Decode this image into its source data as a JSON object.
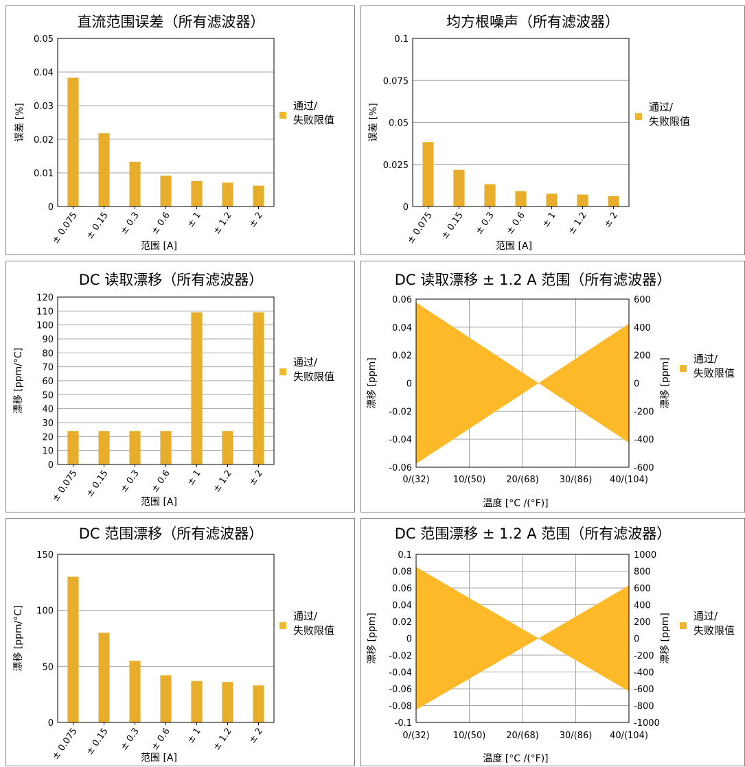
{
  "colors": {
    "bar": "#E8AE2B",
    "band": "#FDB927",
    "legend": "#F0B62D",
    "grid": "#a6a6a6",
    "border": "#7f7f7f"
  },
  "chart_data": [
    {
      "type": "bar",
      "title": "直流范围误差（所有滤波器）",
      "xlabel": "范围 [A]",
      "ylabel": "误差 [%]",
      "categories": [
        "± 0.075",
        "± 0.15",
        "± 0.3",
        "± 0.6",
        "± 1",
        "± 1.2",
        "± 2"
      ],
      "series": [
        {
          "name": "通过/失败限值",
          "values": [
            0.0383,
            0.0218,
            0.0133,
            0.0092,
            0.0076,
            0.0071,
            0.0062
          ]
        }
      ],
      "ylim": [
        0,
        0.05
      ],
      "yticks": [
        "0",
        "0.01",
        "0.02",
        "0.03",
        "0.04",
        "0.05"
      ],
      "legend": [
        "通过/",
        "失败限值"
      ],
      "grid": true
    },
    {
      "type": "bar",
      "title": "均方根噪声（所有滤波器）",
      "xlabel": "范围 [A]",
      "ylabel": "误差 [%]",
      "categories": [
        "± 0.075",
        "± 0.15",
        "± 0.3",
        "± 0.6",
        "± 1",
        "± 1.2",
        "± 2"
      ],
      "series": [
        {
          "name": "通过/失败限值",
          "values": [
            0.0383,
            0.0218,
            0.0133,
            0.0092,
            0.0076,
            0.0071,
            0.0062
          ]
        }
      ],
      "ylim": [
        0,
        0.1
      ],
      "yticks": [
        "0",
        "0.025",
        "0.05",
        "0.075",
        "0.1"
      ],
      "legend": [
        "通过/",
        "失败限值"
      ],
      "grid": true
    },
    {
      "type": "bar",
      "title": "DC 读取漂移（所有滤波器）",
      "xlabel": "范围 [A]",
      "ylabel": "漂移 [ppm/°C]",
      "categories": [
        "± 0.075",
        "± 0.15",
        "± 0.3",
        "± 0.6",
        "± 1",
        "± 1.2",
        "± 2"
      ],
      "series": [
        {
          "name": "通过/失败限值",
          "values": [
            24,
            24,
            24,
            24,
            109,
            24,
            109
          ]
        }
      ],
      "ylim": [
        0,
        120
      ],
      "yticks": [
        "0",
        "10",
        "20",
        "30",
        "40",
        "50",
        "60",
        "70",
        "80",
        "90",
        "100",
        "110",
        "120"
      ],
      "legend": [
        "通过/",
        "失败限值"
      ],
      "grid": true
    },
    {
      "type": "area",
      "title": "DC 读取漂移 ± 1.2 A 范围（所有滤波器）",
      "xlabel": "温度 [°C /(°F)]",
      "ylabel": "漂移 [ppm]",
      "y2label": "漂移 [ppm]",
      "x": [
        0,
        23,
        40
      ],
      "xticks": [
        "0/(32)",
        "10/(50)",
        "20/(68)",
        "30/(86)",
        "40/(104)"
      ],
      "xlim": [
        0,
        40
      ],
      "series": [
        {
          "name": "通过/失败限值",
          "upper": [
            0.0576,
            0,
            0.0425
          ],
          "lower": [
            -0.0576,
            0,
            -0.0425
          ]
        }
      ],
      "ylim": [
        -0.06,
        0.06
      ],
      "yticks": [
        "-0.06",
        "-0.04",
        "-0.02",
        "0",
        "0.02",
        "0.04",
        "0.06"
      ],
      "y2lim": [
        -600,
        600
      ],
      "y2ticks": [
        "-600",
        "-400",
        "-200",
        "0",
        "200",
        "400",
        "600"
      ],
      "legend": [
        "通过/",
        "失败限值"
      ],
      "grid": true
    },
    {
      "type": "bar",
      "title": "DC 范围漂移（所有滤波器）",
      "xlabel": "范围 [A]",
      "ylabel": "漂移 [ppm/°C]",
      "categories": [
        "± 0.075",
        "± 0.15",
        "± 0.3",
        "± 0.6",
        "± 1",
        "± 1.2",
        "± 2"
      ],
      "series": [
        {
          "name": "通过/失败限值",
          "values": [
            130,
            80,
            55,
            42,
            37,
            36,
            33
          ]
        }
      ],
      "ylim": [
        0,
        150
      ],
      "yticks": [
        "0",
        "50",
        "100",
        "150"
      ],
      "legend": [
        "通过/",
        "失败限值"
      ],
      "grid": true
    },
    {
      "type": "area",
      "title": "DC 范围漂移 ± 1.2 A 范围（所有滤波器）",
      "xlabel": "温度 [°C /(°F)]",
      "ylabel": "漂移 [ppm]",
      "y2label": "漂移 [ppm]",
      "x": [
        0,
        23,
        40
      ],
      "xticks": [
        "0/(32)",
        "10/(50)",
        "20/(68)",
        "30/(86)",
        "40/(104)"
      ],
      "xlim": [
        0,
        40
      ],
      "series": [
        {
          "name": "通过/失败限值",
          "upper": [
            0.085,
            0,
            0.063
          ],
          "lower": [
            -0.085,
            0,
            -0.063
          ]
        }
      ],
      "ylim": [
        -0.1,
        0.1
      ],
      "yticks": [
        "-0.1",
        "-0.08",
        "-0.06",
        "-0.04",
        "-0.02",
        "0",
        "0.02",
        "0.04",
        "0.06",
        "0.08",
        "0.1"
      ],
      "y2lim": [
        -1000,
        1000
      ],
      "y2ticks": [
        "-1000",
        "-800",
        "-600",
        "-400",
        "-200",
        "0",
        "200",
        "400",
        "600",
        "800",
        "1000"
      ],
      "legend": [
        "通过/",
        "失败限值"
      ],
      "grid": true
    }
  ]
}
